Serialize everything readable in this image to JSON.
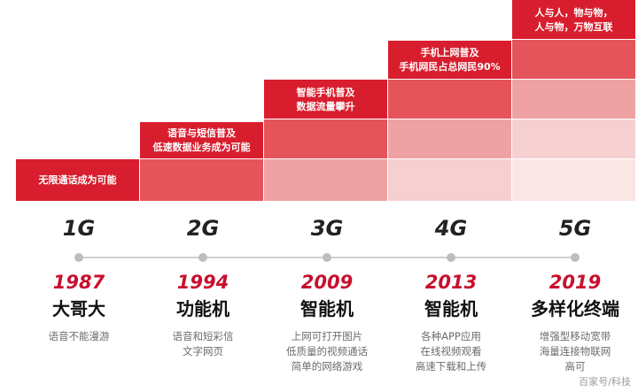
{
  "steps": [
    {
      "lines": [
        "无限通话成为可能"
      ]
    },
    {
      "lines": [
        "语音与短信普及",
        "低速数据业务成为可能"
      ]
    },
    {
      "lines": [
        "智能手机普及",
        "数据流量攀升"
      ]
    },
    {
      "lines": [
        "手机上网普及",
        "手机网民占总网民90%"
      ]
    },
    {
      "lines": [
        "人与人，物与物，",
        "人与物，万物互联"
      ]
    }
  ],
  "generations": [
    {
      "gen": "1G",
      "year": "1987",
      "device": "大哥大",
      "features": [
        "语音不能漫游"
      ]
    },
    {
      "gen": "2G",
      "year": "1994",
      "device": "功能机",
      "features": [
        "语音和短彩信",
        "文字网页"
      ]
    },
    {
      "gen": "3G",
      "year": "2009",
      "device": "智能机",
      "features": [
        "上网可打开图片",
        "低质量的视频通话",
        "简单的网络游戏"
      ]
    },
    {
      "gen": "4G",
      "year": "2013",
      "device": "智能机",
      "features": [
        "各种APP应用",
        "在线视频观看",
        "高速下载和上传"
      ]
    },
    {
      "gen": "5G",
      "year": "2019",
      "device": "多样化终端",
      "features": [
        "增强型移动宽带",
        "海量连接物联网",
        "高可"
      ]
    }
  ],
  "watermark": "百家号/科技",
  "colors": {
    "accent": "#c8102e",
    "tier1": "#d81e2e",
    "tier2": "#e4545a",
    "tier3": "#efa2a4",
    "tier4": "#f6cfd0",
    "tier5": "#fbe6e6"
  }
}
